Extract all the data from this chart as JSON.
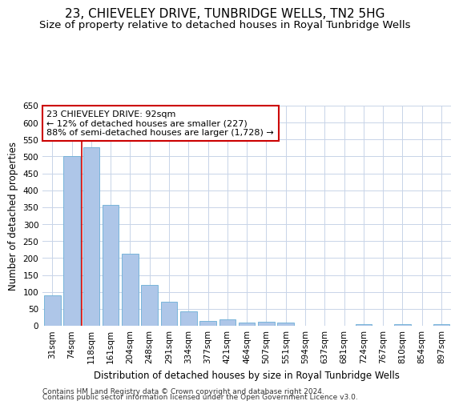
{
  "title": "23, CHIEVELEY DRIVE, TUNBRIDGE WELLS, TN2 5HG",
  "subtitle": "Size of property relative to detached houses in Royal Tunbridge Wells",
  "xlabel": "Distribution of detached houses by size in Royal Tunbridge Wells",
  "ylabel": "Number of detached properties",
  "footnote1": "Contains HM Land Registry data © Crown copyright and database right 2024.",
  "footnote2": "Contains public sector information licensed under the Open Government Licence v3.0.",
  "categories": [
    "31sqm",
    "74sqm",
    "118sqm",
    "161sqm",
    "204sqm",
    "248sqm",
    "291sqm",
    "334sqm",
    "377sqm",
    "421sqm",
    "464sqm",
    "507sqm",
    "551sqm",
    "594sqm",
    "637sqm",
    "681sqm",
    "724sqm",
    "767sqm",
    "810sqm",
    "854sqm",
    "897sqm"
  ],
  "values": [
    90,
    500,
    527,
    358,
    212,
    120,
    70,
    42,
    15,
    19,
    10,
    11,
    9,
    0,
    0,
    0,
    5,
    0,
    5,
    0,
    5
  ],
  "bar_color": "#aec6e8",
  "bar_edge_color": "#6aaed6",
  "grid_color": "#c8d4e8",
  "property_line_x": 1.5,
  "annotation_text_line1": "23 CHIEVELEY DRIVE: 92sqm",
  "annotation_text_line2": "← 12% of detached houses are smaller (227)",
  "annotation_text_line3": "88% of semi-detached houses are larger (1,728) →",
  "annotation_box_color": "#ffffff",
  "annotation_box_edge": "#cc0000",
  "vline_color": "#cc0000",
  "ylim": [
    0,
    650
  ],
  "yticks": [
    0,
    50,
    100,
    150,
    200,
    250,
    300,
    350,
    400,
    450,
    500,
    550,
    600,
    650
  ],
  "title_fontsize": 11,
  "subtitle_fontsize": 9.5,
  "ylabel_fontsize": 8.5,
  "xlabel_fontsize": 8.5,
  "tick_fontsize": 7.5,
  "annotation_fontsize": 8,
  "footnote_fontsize": 6.5
}
